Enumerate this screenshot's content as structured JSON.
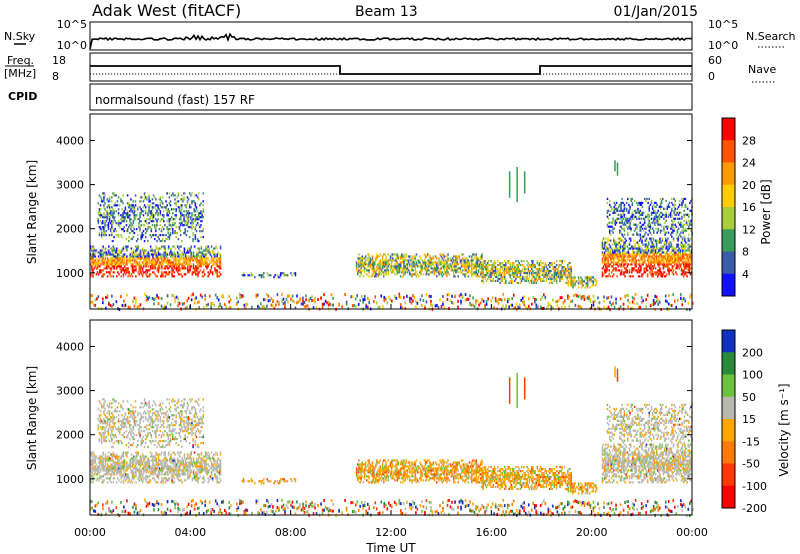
{
  "header": {
    "station": "Adak West (fitACF)",
    "beam": "Beam 13",
    "date": "01/Jan/2015"
  },
  "top_panels": {
    "nsky_label": "N.Sky",
    "nsky_ticks": [
      "10^5",
      "10^0"
    ],
    "nsearch_label": "N.Search",
    "nsearch_ticks": [
      "10^5",
      "10^0"
    ],
    "freq_label": "Freq.",
    "freq_unit": "[MHz]",
    "freq_ticks": [
      "18",
      "8"
    ],
    "nave_label": "Nave",
    "nave_ticks": [
      "60",
      "0"
    ],
    "cpid_label": "CPID",
    "cpid_text": "normalsound (fast) 157 RF"
  },
  "chart_data": [
    {
      "type": "heatmap",
      "name": "power",
      "ylabel": "Slant Range [km]",
      "xlabel": "",
      "ylim": [
        180,
        4600
      ],
      "yticks": [
        "4000",
        "3000",
        "2000",
        "1000"
      ],
      "colorbar_label": "Power [dB]",
      "colorbar_ticks": [
        "28",
        "24",
        "20",
        "16",
        "12",
        "8",
        "4"
      ],
      "colors": [
        "#ff0000",
        "#ff5500",
        "#ff9900",
        "#ffcc00",
        "#a8cc3c",
        "#3a9c5c",
        "#3a5ca8",
        "#1010ff"
      ],
      "echo_regions": [
        {
          "t": [
            0.0,
            5.2
          ],
          "range": [
            900,
            1600
          ],
          "level": "high"
        },
        {
          "t": [
            0.3,
            4.5
          ],
          "range": [
            1700,
            2800
          ],
          "level": "low"
        },
        {
          "t": [
            6.0,
            8.2
          ],
          "range": [
            880,
            1000
          ],
          "level": "low"
        },
        {
          "t": [
            10.6,
            15.6
          ],
          "range": [
            900,
            1400
          ],
          "level": "mid"
        },
        {
          "t": [
            15.6,
            19.2
          ],
          "range": [
            750,
            1250
          ],
          "level": "mid"
        },
        {
          "t": [
            19.0,
            20.2
          ],
          "range": [
            650,
            900
          ],
          "level": "mid"
        },
        {
          "t": [
            20.4,
            24.0
          ],
          "range": [
            900,
            1800
          ],
          "level": "high"
        },
        {
          "t": [
            20.6,
            24.0
          ],
          "range": [
            1800,
            2700
          ],
          "level": "low"
        }
      ]
    },
    {
      "type": "heatmap",
      "name": "velocity",
      "ylabel": "Slant Range [km]",
      "xlabel": "Time UT",
      "ylim": [
        180,
        4600
      ],
      "yticks": [
        "4000",
        "3000",
        "2000",
        "1000"
      ],
      "colorbar_label": "Velocity [m s⁻¹]",
      "colorbar_ticks": [
        "200",
        "100",
        "50",
        "15",
        "-15",
        "-50",
        "-100",
        "-200"
      ],
      "colors": [
        "#1030c0",
        "#2a8a3a",
        "#6cc23c",
        "#b8b8b0",
        "#ffa500",
        "#ff7a00",
        "#ff3a00",
        "#ff0000"
      ],
      "xticks": [
        "00:00",
        "04:00",
        "08:00",
        "12:00",
        "16:00",
        "20:00",
        "00:00"
      ],
      "xlim": [
        0,
        24
      ]
    }
  ],
  "colors": {
    "ground_scatter": "#b8b8b0",
    "negative_velocity": "#ffa500",
    "positive_velocity": "#6cc23c"
  }
}
